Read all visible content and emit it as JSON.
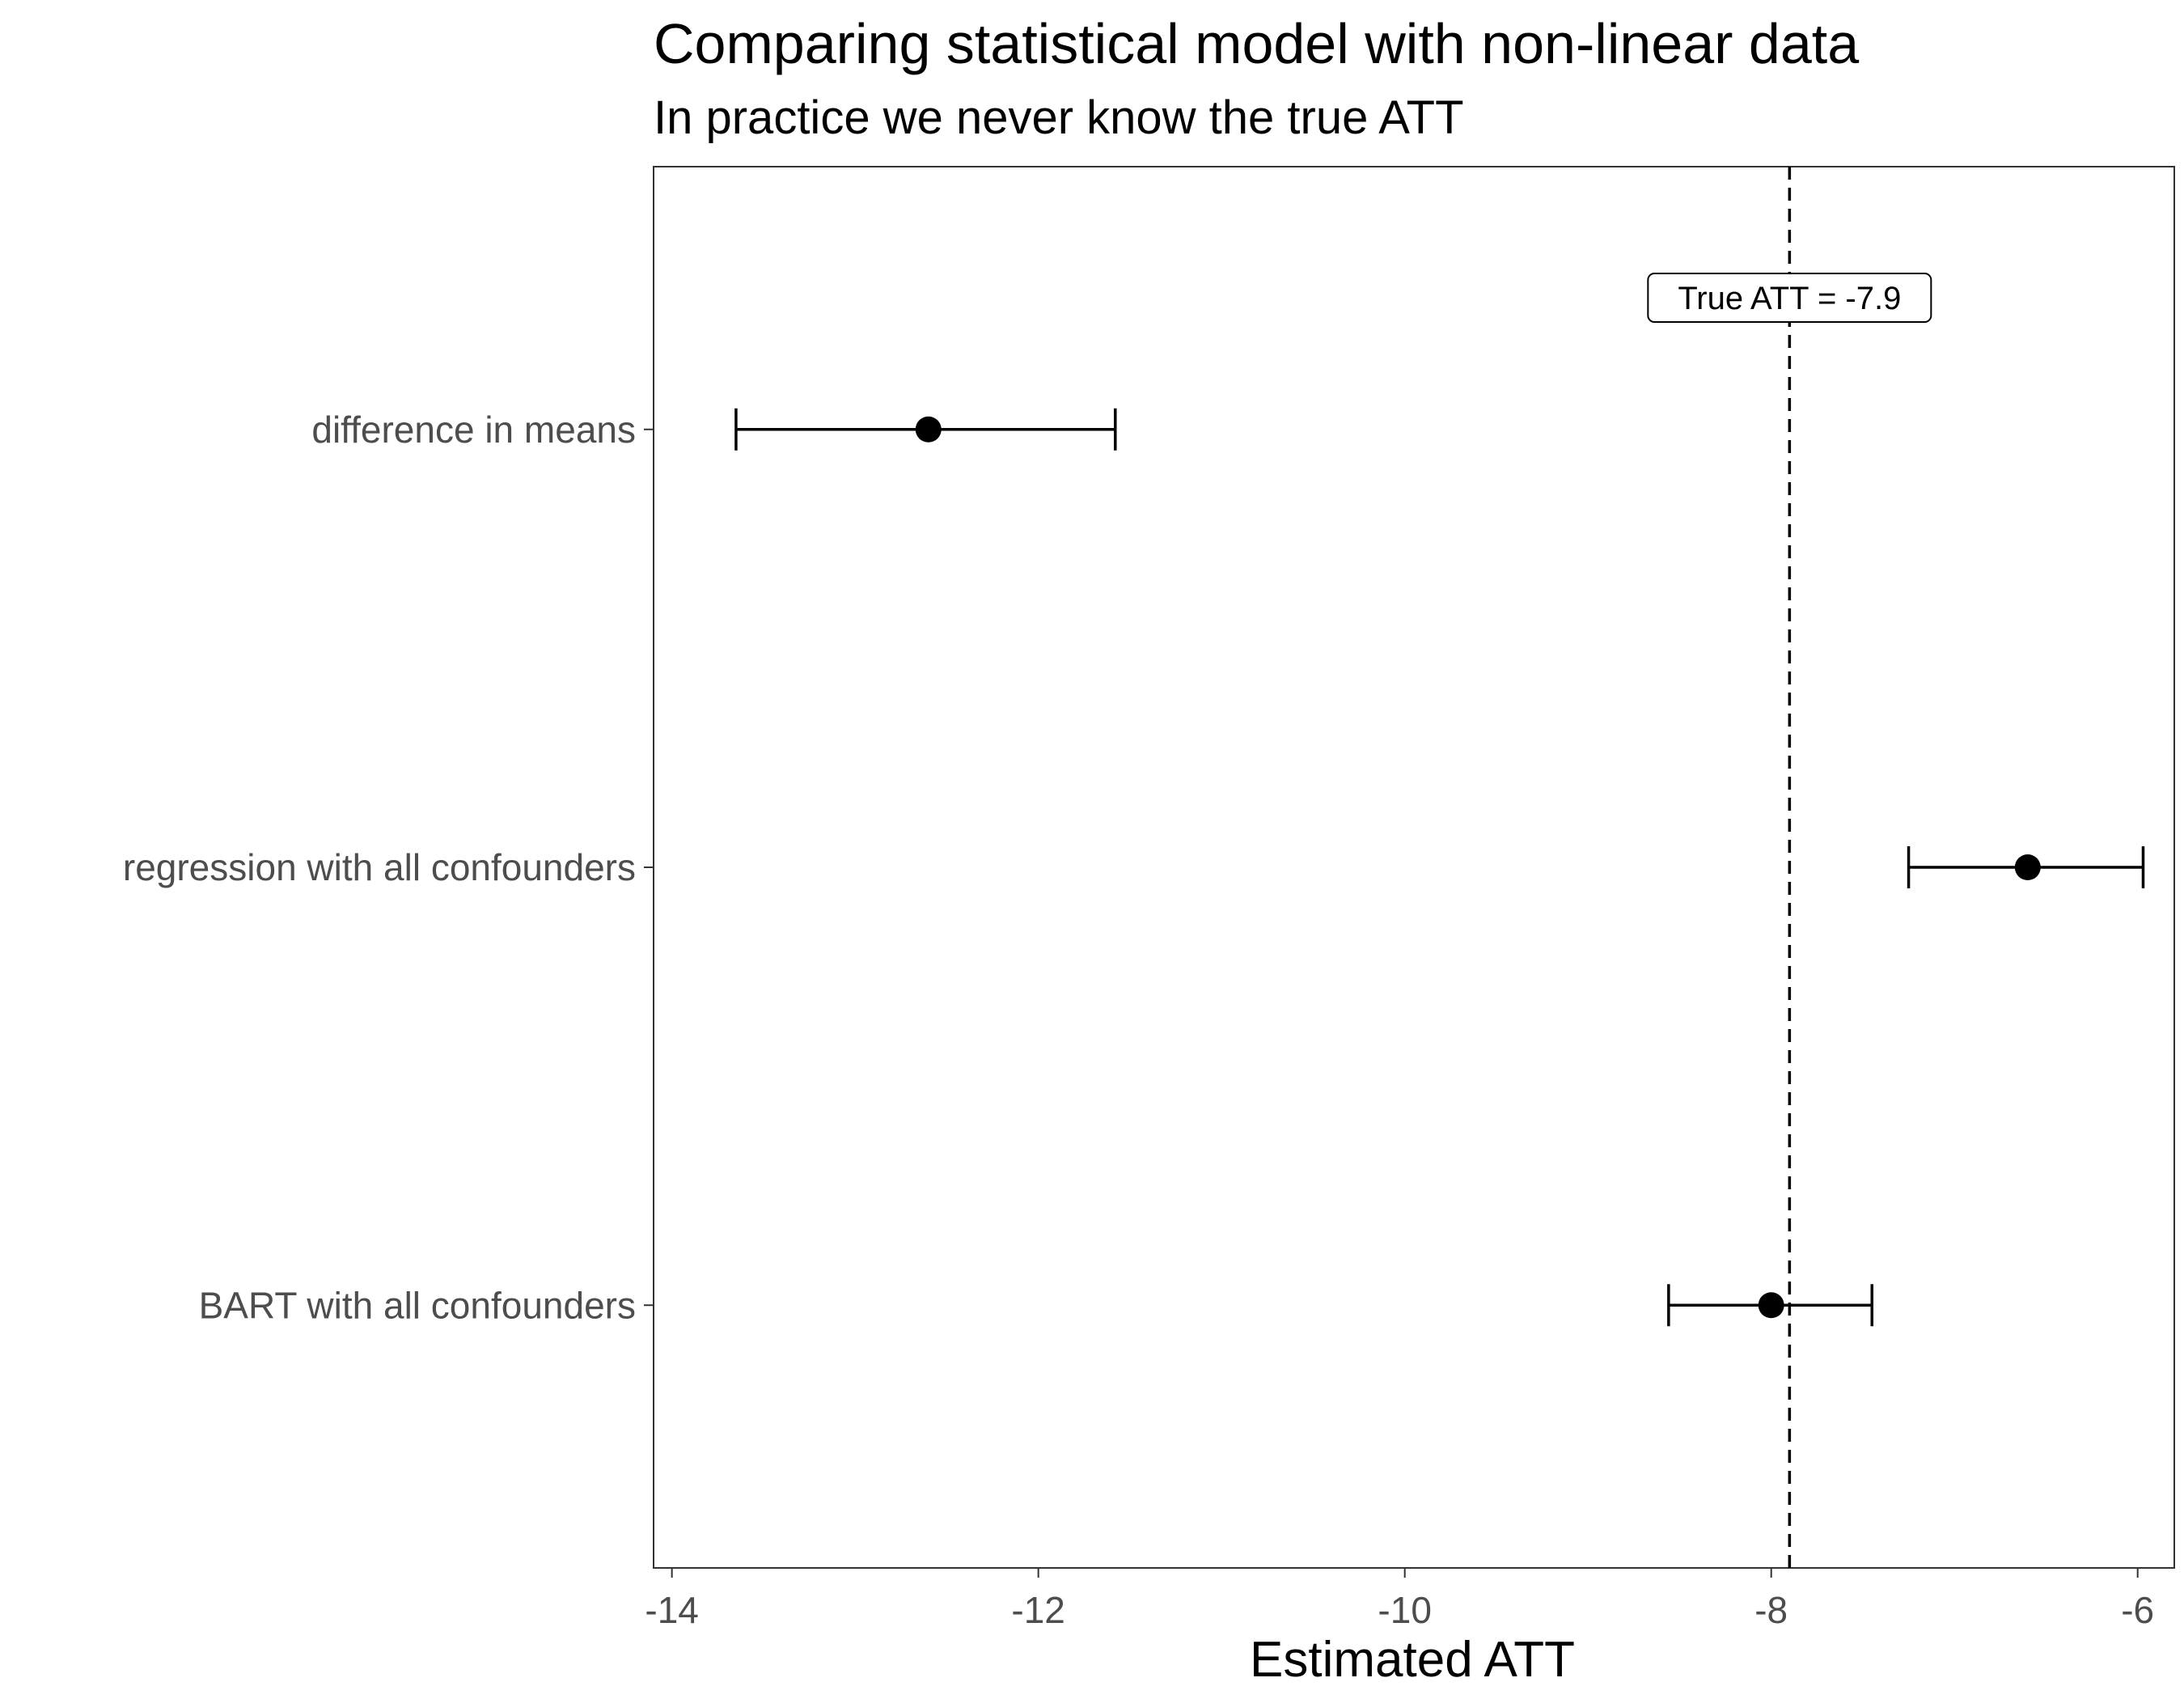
{
  "chart_data": {
    "type": "errorbar",
    "title": "Comparing statistical model with non-linear data",
    "subtitle": "In practice we never know the true ATT",
    "xlabel": "Estimated ATT",
    "ylabel": "",
    "xlim": [
      -14.1,
      -5.8
    ],
    "xticks": [
      -14,
      -12,
      -10,
      -8,
      -6
    ],
    "xtick_labels": [
      "-14",
      "-12",
      "-10",
      "-8",
      "-6"
    ],
    "categories": [
      "difference in means",
      "regression with all confounders",
      "BART with all confounders"
    ],
    "estimates": [
      -12.6,
      -6.6,
      -8.0
    ],
    "lower": [
      -13.65,
      -7.25,
      -8.56
    ],
    "upper": [
      -11.58,
      -5.97,
      -7.45
    ],
    "reference_line": {
      "x": -7.9,
      "style": "dashed",
      "label": "True ATT = -7.9"
    },
    "grid": false,
    "legend": "none",
    "colors": {
      "point": "#000000",
      "errorbar": "#000000",
      "panel_border": "#333333",
      "tick_label": "#4d4d4d"
    }
  }
}
